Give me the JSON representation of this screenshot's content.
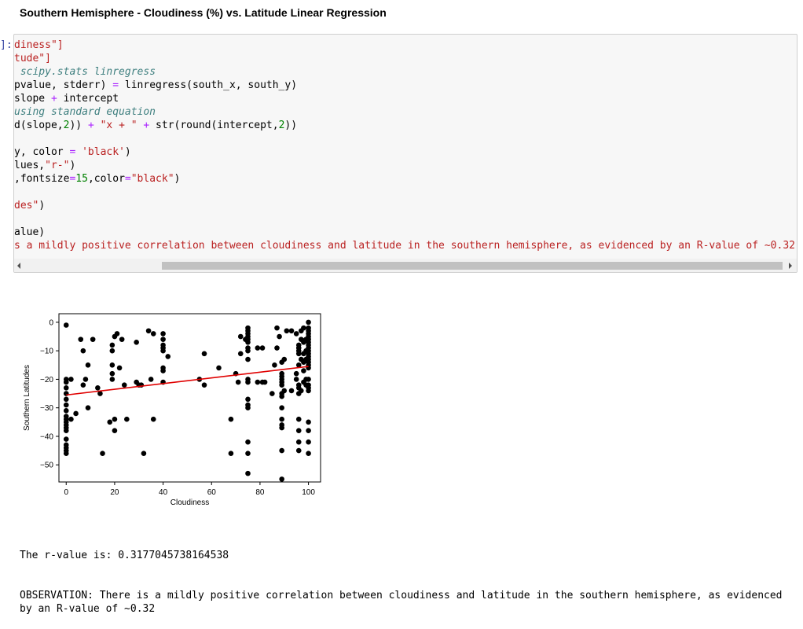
{
  "heading": "Southern Hemisphere - Cloudiness (%) vs. Latitude Linear Regression",
  "prompt": "]:",
  "code_lines": [
    [
      {
        "t": "diness\"]",
        "c": "st"
      }
    ],
    [
      {
        "t": "tude\"]",
        "c": "st"
      }
    ],
    [
      {
        "t": " scipy.stats ",
        "c": "cm"
      },
      {
        "t": "linregress",
        "c": "cm"
      }
    ],
    [
      {
        "t": "pvalue, stderr) ",
        "c": ""
      },
      {
        "t": "=",
        "c": "op"
      },
      {
        "t": " linregress(south_x, south_y)",
        "c": ""
      }
    ],
    [
      {
        "t": "slope ",
        "c": ""
      },
      {
        "t": "+",
        "c": "op"
      },
      {
        "t": " intercept",
        "c": ""
      }
    ],
    [
      {
        "t": "using standard equation",
        "c": "cm"
      }
    ],
    [
      {
        "t": "d(slope,",
        "c": ""
      },
      {
        "t": "2",
        "c": "nm"
      },
      {
        "t": ")) ",
        "c": ""
      },
      {
        "t": "+",
        "c": "op"
      },
      {
        "t": " ",
        "c": ""
      },
      {
        "t": "\"x + \"",
        "c": "st"
      },
      {
        "t": " ",
        "c": ""
      },
      {
        "t": "+",
        "c": "op"
      },
      {
        "t": " str(round(intercept,",
        "c": ""
      },
      {
        "t": "2",
        "c": "nm"
      },
      {
        "t": "))",
        "c": ""
      }
    ],
    [
      {
        "t": "",
        "c": ""
      }
    ],
    [
      {
        "t": "y, color ",
        "c": ""
      },
      {
        "t": "=",
        "c": "op"
      },
      {
        "t": " ",
        "c": ""
      },
      {
        "t": "'black'",
        "c": "st"
      },
      {
        "t": ")",
        "c": ""
      }
    ],
    [
      {
        "t": "lues,",
        "c": ""
      },
      {
        "t": "\"r-\"",
        "c": "st"
      },
      {
        "t": ")",
        "c": ""
      }
    ],
    [
      {
        "t": ",fontsize",
        "c": ""
      },
      {
        "t": "=",
        "c": "op"
      },
      {
        "t": "15",
        "c": "nm"
      },
      {
        "t": ",color",
        "c": ""
      },
      {
        "t": "=",
        "c": "op"
      },
      {
        "t": "\"black\"",
        "c": "st"
      },
      {
        "t": ")",
        "c": ""
      }
    ],
    [
      {
        "t": "",
        "c": ""
      }
    ],
    [
      {
        "t": "des\"",
        "c": "st"
      },
      {
        "t": ")",
        "c": ""
      }
    ],
    [
      {
        "t": "",
        "c": ""
      }
    ],
    [
      {
        "t": "alue)",
        "c": ""
      }
    ],
    [
      {
        "t": "s a mildly positive correlation between cloudiness and latitude in the southern hemisphere, as evidenced by an R-value of ~0.32\"",
        "c": "st"
      },
      {
        "t": ")",
        "c": ""
      }
    ]
  ],
  "output": {
    "rvalue_line": "The r-value is: 0.3177045738164538",
    "observation": "OBSERVATION: There is a mildly positive correlation between cloudiness and latitude in the southern hemisphere, as evidenced by an R-value of ~0.32"
  },
  "chart_data": {
    "type": "scatter",
    "xlabel": "Cloudiness",
    "ylabel": "Southern Latitudes",
    "xlim": [
      -3,
      105
    ],
    "ylim": [
      -56,
      3
    ],
    "xticks": [
      0,
      20,
      40,
      60,
      80,
      100
    ],
    "yticks": [
      0,
      -10,
      -20,
      -30,
      -40,
      -50
    ],
    "grid": false,
    "point_color": "#000000",
    "line_color": "#e00000",
    "regression": {
      "slope": 0.1,
      "intercept": -25.5
    },
    "points": [
      [
        0,
        -1
      ],
      [
        0,
        -20
      ],
      [
        0,
        -21
      ],
      [
        0,
        -23
      ],
      [
        0,
        -25
      ],
      [
        0,
        -27
      ],
      [
        0,
        -29
      ],
      [
        0,
        -31
      ],
      [
        0,
        -33
      ],
      [
        0,
        -34
      ],
      [
        0,
        -35
      ],
      [
        0,
        -36
      ],
      [
        0,
        -37
      ],
      [
        0,
        -38
      ],
      [
        0,
        -41
      ],
      [
        0,
        -43
      ],
      [
        0,
        -44
      ],
      [
        0,
        -45
      ],
      [
        0,
        -46
      ],
      [
        2,
        -20
      ],
      [
        2,
        -34
      ],
      [
        4,
        -32
      ],
      [
        6,
        -6
      ],
      [
        7,
        -10
      ],
      [
        7,
        -22
      ],
      [
        8,
        -20
      ],
      [
        9,
        -15
      ],
      [
        9,
        -30
      ],
      [
        11,
        -6
      ],
      [
        13,
        -23
      ],
      [
        14,
        -25
      ],
      [
        15,
        -46
      ],
      [
        18,
        -35
      ],
      [
        19,
        -8
      ],
      [
        19,
        -10
      ],
      [
        19,
        -15
      ],
      [
        19,
        -18
      ],
      [
        19,
        -20
      ],
      [
        20,
        -5
      ],
      [
        20,
        -34
      ],
      [
        20,
        -38
      ],
      [
        21,
        -4
      ],
      [
        22,
        -16
      ],
      [
        23,
        -6
      ],
      [
        24,
        -22
      ],
      [
        25,
        -34
      ],
      [
        29,
        -21
      ],
      [
        29,
        -7
      ],
      [
        30,
        -22
      ],
      [
        31,
        -22
      ],
      [
        32,
        -46
      ],
      [
        34,
        -3
      ],
      [
        35,
        -20
      ],
      [
        36,
        -4
      ],
      [
        36,
        -34
      ],
      [
        40,
        -4
      ],
      [
        40,
        -6
      ],
      [
        40,
        -8
      ],
      [
        40,
        -9
      ],
      [
        40,
        -10
      ],
      [
        40,
        -16
      ],
      [
        40,
        -17
      ],
      [
        40,
        -21
      ],
      [
        42,
        -12
      ],
      [
        55,
        -20
      ],
      [
        57,
        -11
      ],
      [
        57,
        -22
      ],
      [
        63,
        -16
      ],
      [
        68,
        -46
      ],
      [
        68,
        -34
      ],
      [
        70,
        -18
      ],
      [
        71,
        -21
      ],
      [
        72,
        -11
      ],
      [
        72,
        -5
      ],
      [
        74,
        -6
      ],
      [
        75,
        -2
      ],
      [
        75,
        -3
      ],
      [
        75,
        -4
      ],
      [
        75,
        -5
      ],
      [
        75,
        -6
      ],
      [
        75,
        -7
      ],
      [
        75,
        -9
      ],
      [
        75,
        -10
      ],
      [
        75,
        -13
      ],
      [
        75,
        -20
      ],
      [
        75,
        -21
      ],
      [
        75,
        -27
      ],
      [
        75,
        -29
      ],
      [
        75,
        -30
      ],
      [
        75,
        -42
      ],
      [
        75,
        -46
      ],
      [
        75,
        -53
      ],
      [
        79,
        -9
      ],
      [
        79,
        -21
      ],
      [
        81,
        -9
      ],
      [
        81,
        -21
      ],
      [
        82,
        -21
      ],
      [
        85,
        -25
      ],
      [
        86,
        -15
      ],
      [
        87,
        -9
      ],
      [
        87,
        -2
      ],
      [
        88,
        -5
      ],
      [
        89,
        -14
      ],
      [
        89,
        -18
      ],
      [
        89,
        -19
      ],
      [
        89,
        -20
      ],
      [
        89,
        -21
      ],
      [
        89,
        -22
      ],
      [
        89,
        -25
      ],
      [
        89,
        -26
      ],
      [
        89,
        -30
      ],
      [
        89,
        -34
      ],
      [
        89,
        -36
      ],
      [
        89,
        -37
      ],
      [
        89,
        -45
      ],
      [
        89,
        -55
      ],
      [
        90,
        -13
      ],
      [
        90,
        -24
      ],
      [
        91,
        -3
      ],
      [
        93,
        -3
      ],
      [
        93,
        -24
      ],
      [
        95,
        -4
      ],
      [
        95,
        -18
      ],
      [
        95,
        -20
      ],
      [
        96,
        -8
      ],
      [
        96,
        -9
      ],
      [
        96,
        -10
      ],
      [
        96,
        -11
      ],
      [
        96,
        -15
      ],
      [
        96,
        -22
      ],
      [
        96,
        -23
      ],
      [
        96,
        -25
      ],
      [
        96,
        -34
      ],
      [
        96,
        -38
      ],
      [
        96,
        -42
      ],
      [
        96,
        -45
      ],
      [
        97,
        -3
      ],
      [
        97,
        -6
      ],
      [
        97,
        -13
      ],
      [
        97,
        -24
      ],
      [
        98,
        -2
      ],
      [
        98,
        -7
      ],
      [
        98,
        -11
      ],
      [
        98,
        -14
      ],
      [
        98,
        -17
      ],
      [
        98,
        -21
      ],
      [
        99,
        -6
      ],
      [
        99,
        -10
      ],
      [
        99,
        -13
      ],
      [
        99,
        -20
      ],
      [
        99,
        -22
      ],
      [
        100,
        0
      ],
      [
        100,
        -2
      ],
      [
        100,
        -3
      ],
      [
        100,
        -4
      ],
      [
        100,
        -5
      ],
      [
        100,
        -6
      ],
      [
        100,
        -7
      ],
      [
        100,
        -8
      ],
      [
        100,
        -9
      ],
      [
        100,
        -10
      ],
      [
        100,
        -11
      ],
      [
        100,
        -12
      ],
      [
        100,
        -13
      ],
      [
        100,
        -14
      ],
      [
        100,
        -15
      ],
      [
        100,
        -16
      ],
      [
        100,
        -20
      ],
      [
        100,
        -22
      ],
      [
        100,
        -23
      ],
      [
        100,
        -24
      ],
      [
        100,
        -35
      ],
      [
        100,
        -38
      ],
      [
        100,
        -42
      ],
      [
        100,
        -46
      ]
    ]
  }
}
